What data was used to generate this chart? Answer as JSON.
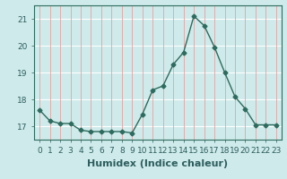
{
  "x": [
    0,
    1,
    2,
    3,
    4,
    5,
    6,
    7,
    8,
    9,
    10,
    11,
    12,
    13,
    14,
    15,
    16,
    17,
    18,
    19,
    20,
    21,
    22,
    23
  ],
  "y": [
    17.6,
    17.2,
    17.1,
    17.1,
    16.85,
    16.8,
    16.8,
    16.8,
    16.8,
    16.75,
    17.45,
    18.35,
    18.5,
    19.3,
    19.75,
    21.1,
    20.75,
    19.95,
    19.0,
    18.1,
    17.65,
    17.05,
    17.05,
    17.05
  ],
  "line_color": "#2e6b5e",
  "marker": "D",
  "marker_size": 2.5,
  "bg_color": "#ceeaea",
  "hgrid_color": "#ffffff",
  "vgrid_color": "#e8a0a0",
  "xlabel": "Humidex (Indice chaleur)",
  "xlabel_fontsize": 8,
  "xlim": [
    -0.5,
    23.5
  ],
  "ylim": [
    16.5,
    21.5
  ],
  "yticks": [
    17,
    18,
    19,
    20,
    21
  ],
  "xtick_labels": [
    "0",
    "1",
    "2",
    "3",
    "4",
    "5",
    "6",
    "7",
    "8",
    "9",
    "10",
    "11",
    "12",
    "13",
    "14",
    "15",
    "16",
    "17",
    "18",
    "19",
    "20",
    "21",
    "22",
    "23"
  ],
  "tick_fontsize": 6.5,
  "linewidth": 1.0
}
